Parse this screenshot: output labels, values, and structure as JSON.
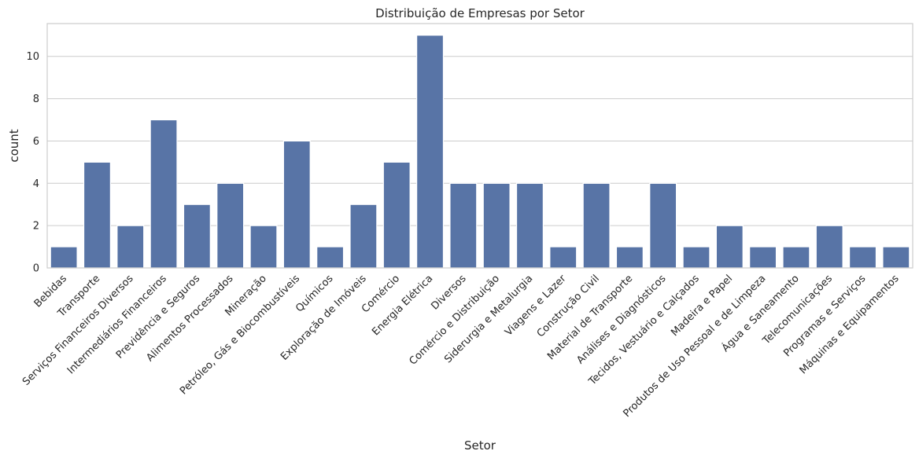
{
  "chart_data": {
    "type": "bar",
    "title": "Distribuição de Empresas por Setor",
    "xlabel": "Setor",
    "ylabel": "count",
    "ylim": [
      0,
      11.55
    ],
    "yticks": [
      0,
      2,
      4,
      6,
      8,
      10
    ],
    "grid": true,
    "bar_color": "#5874a6",
    "categories": [
      "Bebidas",
      "Transporte",
      "Serviços Financeiros Diversos",
      "Intermediários Financeiros",
      "Previdência e Seguros",
      "Alimentos Processados",
      "Mineração",
      "Petróleo, Gás e Biocombustíveis",
      "Químicos",
      "Exploração de Imóveis",
      "Comércio",
      "Energia Elétrica",
      "Diversos",
      "Comércio e Distribuição",
      "Siderurgia e Metalurgia",
      "Viagens e Lazer",
      "Construção Civil",
      "Material de Transporte",
      "Análises e Diagnósticos",
      "Tecidos, Vestuário e Calçados",
      "Madeira e Papel",
      "Produtos de Uso Pessoal e de Limpeza",
      "Água e Saneamento",
      "Telecomunicações",
      "Programas e Serviços",
      "Máquinas e Equipamentos"
    ],
    "values": [
      1,
      5,
      2,
      7,
      3,
      4,
      2,
      6,
      1,
      3,
      5,
      11,
      4,
      4,
      4,
      1,
      4,
      1,
      4,
      1,
      2,
      1,
      1,
      2,
      1,
      1
    ]
  }
}
